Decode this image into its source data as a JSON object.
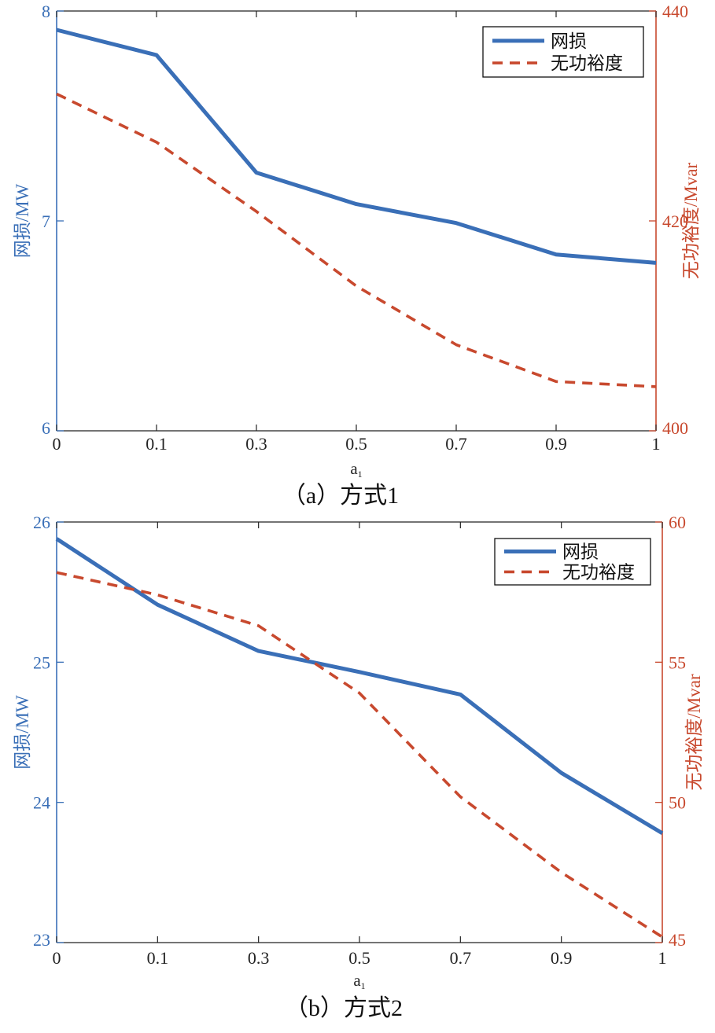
{
  "colors": {
    "left_axis": "#3a6fb7",
    "right_axis": "#c8492e",
    "axes": "#222222"
  },
  "chart_data": [
    {
      "type": "line",
      "caption": "（a）方式1",
      "x_tick_labels": [
        "0",
        "0.1",
        "0.3",
        "0.5",
        "0.7",
        "0.9",
        "1"
      ],
      "xlabel_main": "a",
      "xlabel_sub": "1",
      "ylabel_left": "网损/MW",
      "ylabel_right": "无功裕度/Mvar",
      "ylim_left": [
        6,
        8
      ],
      "ylim_right": [
        400,
        440
      ],
      "yticks_left": [
        "6",
        "7",
        "8"
      ],
      "yticks_right": [
        "400",
        "420",
        "440"
      ],
      "legend_position": "top-right",
      "series": [
        {
          "name": "网损",
          "axis": "left",
          "style": "solid",
          "color": "#3a6fb7",
          "values": [
            7.91,
            7.79,
            7.23,
            7.08,
            6.99,
            6.84,
            6.8
          ]
        },
        {
          "name": "无功裕度",
          "axis": "right",
          "style": "dashed",
          "color": "#c8492e",
          "values": [
            432.1,
            427.5,
            420.9,
            413.8,
            408.2,
            404.7,
            404.2
          ]
        }
      ]
    },
    {
      "type": "line",
      "caption": "（b）方式2",
      "x_tick_labels": [
        "0",
        "0.1",
        "0.3",
        "0.5",
        "0.7",
        "0.9",
        "1"
      ],
      "xlabel_main": "a",
      "xlabel_sub": "1",
      "ylabel_left": "网损/MW",
      "ylabel_right": "无功裕度/Mvar",
      "ylim_left": [
        23,
        26
      ],
      "ylim_right": [
        45,
        60
      ],
      "yticks_left": [
        "23",
        "24",
        "25",
        "26"
      ],
      "yticks_right": [
        "45",
        "50",
        "55",
        "60"
      ],
      "legend_position": "top-right",
      "series": [
        {
          "name": "网损",
          "axis": "left",
          "style": "solid",
          "color": "#3a6fb7",
          "values": [
            25.88,
            25.41,
            25.08,
            24.93,
            24.77,
            24.21,
            23.78
          ]
        },
        {
          "name": "无功裕度",
          "axis": "right",
          "style": "dashed",
          "color": "#c8492e",
          "values": [
            58.2,
            57.4,
            56.3,
            53.9,
            50.2,
            47.5,
            45.2
          ]
        }
      ]
    }
  ]
}
